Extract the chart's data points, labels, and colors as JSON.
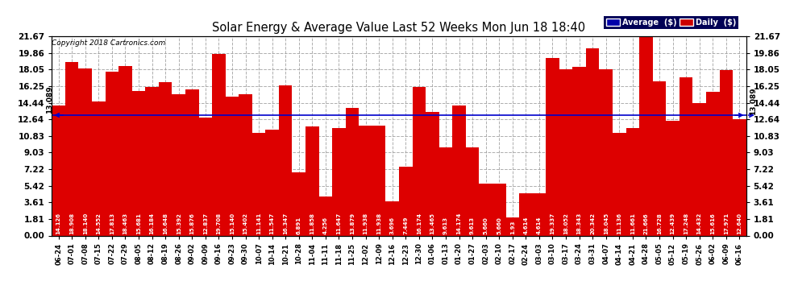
{
  "title": "Solar Energy & Average Value Last 52 Weeks Mon Jun 18 18:40",
  "copyright": "Copyright 2018 Cartronics.com",
  "average_value": 13.089,
  "average_line_color": "#0000cc",
  "bar_color": "#dd0000",
  "ylim_max": 21.67,
  "yticks": [
    0.0,
    1.81,
    3.61,
    5.42,
    7.22,
    9.03,
    10.83,
    12.64,
    14.44,
    16.25,
    18.05,
    19.86,
    21.67
  ],
  "legend_avg_color": "#0000aa",
  "legend_daily_color": "#cc0000",
  "background_color": "#ffffff",
  "grid_color": "#999999",
  "categories": [
    "06-24",
    "07-01",
    "07-08",
    "07-15",
    "07-22",
    "07-29",
    "08-05",
    "08-12",
    "08-19",
    "08-26",
    "09-02",
    "09-09",
    "09-16",
    "09-23",
    "09-30",
    "10-07",
    "10-14",
    "10-21",
    "10-28",
    "11-04",
    "11-11",
    "11-18",
    "11-25",
    "12-02",
    "12-09",
    "12-16",
    "12-23",
    "12-30",
    "01-06",
    "01-13",
    "01-20",
    "01-27",
    "02-03",
    "02-10",
    "02-17",
    "02-24",
    "03-03",
    "03-10",
    "03-17",
    "03-24",
    "03-31",
    "04-07",
    "04-14",
    "04-21",
    "04-28",
    "05-05",
    "05-12",
    "05-19",
    "05-26",
    "06-02",
    "06-09",
    "06-16"
  ],
  "values": [
    14.126,
    18.908,
    18.14,
    14.552,
    17.813,
    18.463,
    15.681,
    16.184,
    16.648,
    15.392,
    15.876,
    12.837,
    19.708,
    15.14,
    15.402,
    11.141,
    11.547,
    16.347,
    6.891,
    11.858,
    4.256,
    11.647,
    13.879,
    11.938,
    11.938,
    3.696,
    7.449,
    16.174,
    13.465,
    9.613,
    14.174,
    9.613,
    5.66,
    5.66,
    1.93,
    4.614,
    4.614,
    19.337,
    18.052,
    18.343,
    20.342,
    18.045,
    11.136,
    11.661,
    21.666,
    16.728,
    12.439,
    17.248,
    14.432,
    15.616,
    17.971,
    12.64
  ],
  "value_labels": [
    "14.126",
    "18.908",
    "18.140",
    "14.552",
    "17.813",
    "18.463",
    "15.681",
    "16.184",
    "16.648",
    "15.392",
    "15.876",
    "12.837",
    "19.708",
    "15.140",
    "15.402",
    "11.141",
    "11.547",
    "16.347",
    "6.891",
    "11.858",
    "4.256",
    "11.647",
    "13.879",
    "11.938",
    "11.938",
    "3.696",
    "7.449",
    "16.174",
    "13.465",
    "9.613",
    "14.174",
    "9.613",
    "5.660",
    "5.660",
    "1.93",
    "4.614",
    "4.614",
    "19.337",
    "18.052",
    "18.343",
    "20.342",
    "18.045",
    "11.136",
    "11.661",
    "21.666",
    "16.728",
    "12.439",
    "17.248",
    "14.432",
    "15.616",
    "17.971",
    "12.640"
  ]
}
